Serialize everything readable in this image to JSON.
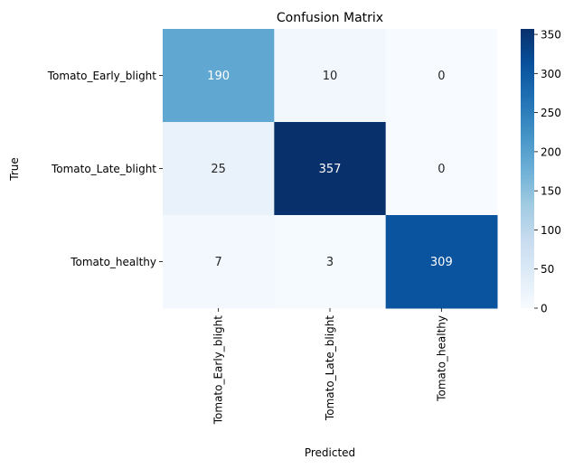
{
  "chart_data": {
    "type": "heatmap",
    "title": "Confusion Matrix",
    "xlabel": "Predicted",
    "ylabel": "True",
    "x_categories": [
      "Tomato_Early_blight",
      "Tomato_Late_blight",
      "Tomato_healthy"
    ],
    "y_categories": [
      "Tomato_Early_blight",
      "Tomato_Late_blight",
      "Tomato_healthy"
    ],
    "values": [
      [
        190,
        10,
        0
      ],
      [
        25,
        357,
        0
      ],
      [
        7,
        3,
        309
      ]
    ],
    "colorbar": {
      "min": 0,
      "max": 357,
      "ticks": [
        0,
        50,
        100,
        150,
        200,
        250,
        300,
        350
      ],
      "colormap": "Blues"
    }
  }
}
